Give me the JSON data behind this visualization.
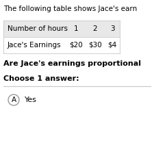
{
  "title_text": "The following table shows Jace's earn",
  "table_header": [
    "Number of hours",
    "1",
    "2",
    "3"
  ],
  "table_row": [
    "Jace's Earnings",
    "$20",
    "$30",
    "$4"
  ],
  "header_bg": "#e8e8e8",
  "row_bg": "#ffffff",
  "question_text": "Are Jace's earnings proportional",
  "choose_text": "Choose 1 answer:",
  "answer_label": "A",
  "answer_text": "Yes",
  "bg_color": "#ffffff",
  "text_color": "#000000",
  "title_fontsize": 7.5,
  "table_fontsize": 7.5,
  "question_fontsize": 8.0,
  "choose_fontsize": 8.0,
  "answer_fontsize": 8.0
}
